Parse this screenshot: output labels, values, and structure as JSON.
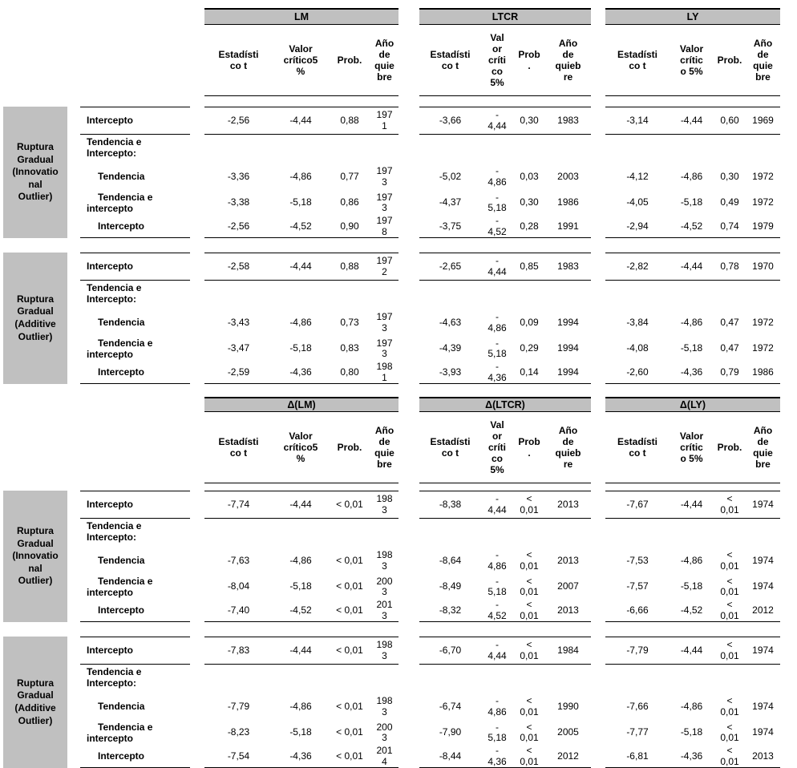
{
  "colors": {
    "group_header_bg": "#c0c0c0",
    "rule": "#000000",
    "text": "#000000"
  },
  "tables": [
    {
      "id": "levels",
      "groups": [
        {
          "title": "LM",
          "subheaders": [
            "Estadísti\nco t",
            "Valor\ncrítico5\n%",
            "Prob.",
            "Año\nde\nquie\nbre"
          ]
        },
        {
          "title": "LTCR",
          "subheaders": [
            "Estadísti\nco t",
            "Val\nor\ncríti\nco\n5%",
            "Prob\n.",
            "Año\nde\nquieb\nre"
          ]
        },
        {
          "title": "LY",
          "subheaders": [
            "Estadísti\nco t",
            "Valor\ncrític\no 5%",
            "Prob.",
            "Año\nde\nquie\nbre"
          ]
        }
      ],
      "blocks": [
        {
          "group_label": "Ruptura\nGradual\n(Innovatio\nnal\nOutlier)",
          "rows": [
            {
              "label": "Intercepto",
              "cells": [
                [
                  "-2,56",
                  "-4,44",
                  "0,88",
                  "197\n1"
                ],
                [
                  "-3,66",
                  "-\n4,44",
                  "0,30",
                  "1983"
                ],
                [
                  "-3,14",
                  "-4,44",
                  "0,60",
                  "1969"
                ]
              ]
            },
            {
              "label": "Tendencia e\nIntercepto:"
            },
            {
              "label": "Tendencia",
              "cells": [
                [
                  "-3,36",
                  "-4,86",
                  "0,77",
                  "197\n3"
                ],
                [
                  "-5,02",
                  "-\n4,86",
                  "0,03",
                  "2003"
                ],
                [
                  "-4,12",
                  "-4,86",
                  "0,30",
                  "1972"
                ]
              ]
            },
            {
              "label": "Tendencia e\nintercepto",
              "cells": [
                [
                  "-3,38",
                  "-5,18",
                  "0,86",
                  "197\n3"
                ],
                [
                  "-4,37",
                  "-\n5,18",
                  "0,30",
                  "1986"
                ],
                [
                  "-4,05",
                  "-5,18",
                  "0,49",
                  "1972"
                ]
              ]
            },
            {
              "label": "Intercepto",
              "cells": [
                [
                  "-2,56",
                  "-4,52",
                  "0,90",
                  "197\n8"
                ],
                [
                  "-3,75",
                  "-\n4,52",
                  "0,28",
                  "1991"
                ],
                [
                  "-2,94",
                  "-4,52",
                  "0,74",
                  "1979"
                ]
              ]
            }
          ]
        },
        {
          "group_label": "Ruptura\nGradual\n(Additive\nOutlier)",
          "rows": [
            {
              "label": "Intercepto",
              "cells": [
                [
                  "-2,58",
                  "-4,44",
                  "0,88",
                  "197\n2"
                ],
                [
                  "-2,65",
                  "-\n4,44",
                  "0,85",
                  "1983"
                ],
                [
                  "-2,82",
                  "-4,44",
                  "0,78",
                  "1970"
                ]
              ]
            },
            {
              "label": "Tendencia e\nIntercepto:"
            },
            {
              "label": "Tendencia",
              "cells": [
                [
                  "-3,43",
                  "-4,86",
                  "0,73",
                  "197\n3"
                ],
                [
                  "-4,63",
                  "-\n4,86",
                  "0,09",
                  "1994"
                ],
                [
                  "-3,84",
                  "-4,86",
                  "0,47",
                  "1972"
                ]
              ]
            },
            {
              "label": "Tendencia e\nintercepto",
              "cells": [
                [
                  "-3,47",
                  "-5,18",
                  "0,83",
                  "197\n3"
                ],
                [
                  "-4,39",
                  "-\n5,18",
                  "0,29",
                  "1994"
                ],
                [
                  "-4,08",
                  "-5,18",
                  "0,47",
                  "1972"
                ]
              ]
            },
            {
              "label": "Intercepto",
              "cells": [
                [
                  "-2,59",
                  "-4,36",
                  "0,80",
                  "198\n1"
                ],
                [
                  "-3,93",
                  "-\n4,36",
                  "0,14",
                  "1994"
                ],
                [
                  "-2,60",
                  "-4,36",
                  "0,79",
                  "1986"
                ]
              ]
            }
          ]
        }
      ]
    },
    {
      "id": "differences",
      "groups": [
        {
          "title": "Δ(LM)",
          "subheaders": [
            "Estadísti\nco t",
            "Valor\ncrítico5\n%",
            "Prob.",
            "Año\nde\nquie\nbre"
          ]
        },
        {
          "title": "Δ(LTCR)",
          "subheaders": [
            "Estadísti\nco t",
            "Val\nor\ncríti\nco\n5%",
            "Prob\n.",
            "Año\nde\nquieb\nre"
          ]
        },
        {
          "title": "Δ(LY)",
          "subheaders": [
            "Estadísti\nco t",
            "Valor\ncrític\no 5%",
            "Prob.",
            "Año\nde\nquie\nbre"
          ]
        }
      ],
      "blocks": [
        {
          "group_label": "Ruptura\nGradual\n(Innovatio\nnal\nOutlier)",
          "rows": [
            {
              "label": "Intercepto",
              "cells": [
                [
                  "-7,74",
                  "-4,44",
                  "< 0,01",
                  "198\n3"
                ],
                [
                  "-8,38",
                  "-\n4,44",
                  "<\n0,01",
                  "2013"
                ],
                [
                  "-7,67",
                  "-4,44",
                  "<\n0,01",
                  "1974"
                ]
              ]
            },
            {
              "label": "Tendencia e\nIntercepto:"
            },
            {
              "label": "Tendencia",
              "cells": [
                [
                  "-7,63",
                  "-4,86",
                  "< 0,01",
                  "198\n3"
                ],
                [
                  "-8,64",
                  "-\n4,86",
                  "<\n0,01",
                  "2013"
                ],
                [
                  "-7,53",
                  "-4,86",
                  "<\n0,01",
                  "1974"
                ]
              ]
            },
            {
              "label": "Tendencia e\nintercepto",
              "cells": [
                [
                  "-8,04",
                  "-5,18",
                  "< 0,01",
                  "200\n3"
                ],
                [
                  "-8,49",
                  "-\n5,18",
                  "<\n0,01",
                  "2007"
                ],
                [
                  "-7,57",
                  "-5,18",
                  "<\n0,01",
                  "1974"
                ]
              ]
            },
            {
              "label": "Intercepto",
              "cells": [
                [
                  "-7,40",
                  "-4,52",
                  "< 0,01",
                  "201\n3"
                ],
                [
                  "-8,32",
                  "-\n4,52",
                  "<\n0,01",
                  "2013"
                ],
                [
                  "-6,66",
                  "-4,52",
                  "<\n0,01",
                  "2012"
                ]
              ]
            }
          ]
        },
        {
          "group_label": "Ruptura\nGradual\n(Additive\nOutlier)",
          "rows": [
            {
              "label": "Intercepto",
              "cells": [
                [
                  "-7,83",
                  "-4,44",
                  "< 0,01",
                  "198\n3"
                ],
                [
                  "-6,70",
                  "-\n4,44",
                  "<\n0,01",
                  "1984"
                ],
                [
                  "-7,79",
                  "-4,44",
                  "<\n0,01",
                  "1974"
                ]
              ]
            },
            {
              "label": "Tendencia e\nIntercepto:"
            },
            {
              "label": "Tendencia",
              "cells": [
                [
                  "-7,79",
                  "-4,86",
                  "< 0,01",
                  "198\n3"
                ],
                [
                  "-6,74",
                  "-\n4,86",
                  "<\n0,01",
                  "1990"
                ],
                [
                  "-7,66",
                  "-4,86",
                  "<\n0,01",
                  "1974"
                ]
              ]
            },
            {
              "label": "Tendencia e\nintercepto",
              "cells": [
                [
                  "-8,23",
                  "-5,18",
                  "< 0,01",
                  "200\n3"
                ],
                [
                  "-7,90",
                  "-\n5,18",
                  "<\n0,01",
                  "2005"
                ],
                [
                  "-7,77",
                  "-5,18",
                  "<\n0,01",
                  "1974"
                ]
              ]
            },
            {
              "label": "Intercepto",
              "cells": [
                [
                  "-7,54",
                  "-4,36",
                  "< 0,01",
                  "201\n4"
                ],
                [
                  "-8,44",
                  "-\n4,36",
                  "<\n0,01",
                  "2012"
                ],
                [
                  "-6,81",
                  "-4,36",
                  "<\n0,01",
                  "2013"
                ]
              ]
            }
          ]
        }
      ]
    }
  ]
}
